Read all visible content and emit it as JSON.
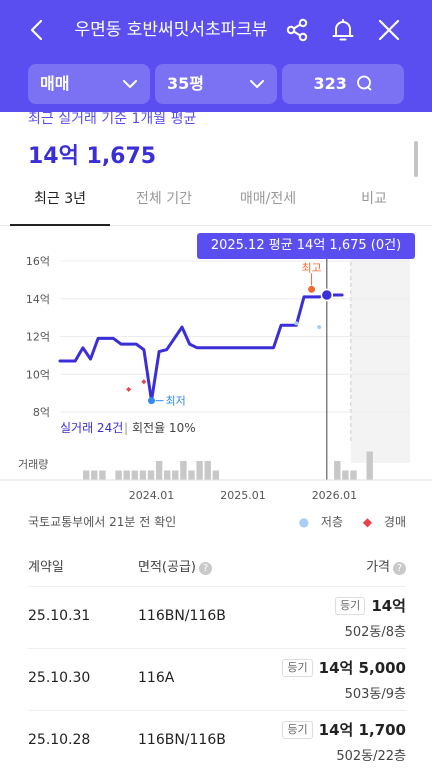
{
  "header": {
    "title": "우면동 호반써밋서초파크뷰",
    "bg_color": "#5b4ef0"
  },
  "filters": {
    "type_label": "매매",
    "size_label": "35평",
    "comment_count": "323"
  },
  "summary": {
    "caption": "최근 실거래 기준 1개월 평균",
    "price": "14억 1,675"
  },
  "tabs": [
    {
      "label": "최근 3년",
      "active": true
    },
    {
      "label": "전체 기간",
      "active": false
    },
    {
      "label": "매매/전세",
      "active": false
    },
    {
      "label": "비교",
      "active": false
    }
  ],
  "tooltip": "2025.12 평균 14억 1,675 (0건)",
  "chart_data": {
    "type": "line",
    "ylim": [
      8,
      16
    ],
    "y_ticks": [
      "16억",
      "14억",
      "12억",
      "10억",
      "8억"
    ],
    "x_ticks": [
      "2024.01",
      "2025.01",
      "2026.01"
    ],
    "series": [
      {
        "x": [
          "2023.01",
          "2023.03",
          "2023.04",
          "2023.05",
          "2023.06",
          "2023.08",
          "2023.09",
          "2023.11",
          "2023.12",
          "2024.01",
          "2024.02",
          "2024.03",
          "2024.05",
          "2024.06",
          "2024.07",
          "2024.09",
          "2025.01",
          "2025.05",
          "2025.06",
          "2025.08",
          "2025.09",
          "2025.10",
          "2025.11",
          "2025.12",
          "2026.02"
        ],
        "values": [
          10.7,
          10.7,
          11.4,
          10.8,
          11.9,
          11.9,
          11.6,
          11.6,
          11.3,
          8.6,
          11.2,
          11.3,
          12.5,
          11.6,
          11.4,
          11.4,
          11.4,
          11.4,
          12.6,
          12.6,
          14.1,
          14.1,
          14.1,
          14.2,
          14.2
        ]
      }
    ],
    "max_label": "최고",
    "min_label": "최저",
    "max_point": {
      "x": "2025.10",
      "y": 14.5
    },
    "min_point": {
      "x": "2024.01",
      "y": 8.6
    },
    "low_floor_points": [
      {
        "x": "2025.08",
        "y": 12.7
      },
      {
        "x": "2025.11",
        "y": 12.5
      }
    ],
    "auction_points": [
      {
        "x": "2023.10",
        "y": 9.2
      },
      {
        "x": "2023.12",
        "y": 9.6
      }
    ],
    "volume_label": "거래량",
    "volume_values": [
      1,
      1,
      1,
      0,
      1,
      1,
      1,
      1,
      1,
      2,
      1,
      1,
      2,
      1,
      2,
      2,
      1,
      0,
      0,
      0,
      0,
      0,
      0,
      0,
      0,
      0,
      0,
      0,
      0,
      0,
      0,
      2,
      1,
      1,
      0,
      3
    ],
    "summary_text_1": "실거래 24건",
    "summary_text_2": "회전율 10%",
    "line_color": "#3a2ed8",
    "max_color": "#f06a2f",
    "min_color": "#2f8bf0"
  },
  "meta": {
    "source": "국토교통부에서 21분 전 확인",
    "legend_low": "저층",
    "legend_auction": "경매"
  },
  "table": {
    "head_date": "계약일",
    "head_area": "면적(공급)",
    "head_price": "가격",
    "rows": [
      {
        "date": "25.10.31",
        "area": "116BN/116B",
        "badge": "등기",
        "price": "14억",
        "unit": "502동/8층"
      },
      {
        "date": "25.10.30",
        "area": "116A",
        "badge": "등기",
        "price": "14억 5,000",
        "unit": "503동/9층"
      },
      {
        "date": "25.10.28",
        "area": "116BN/116B",
        "badge": "등기",
        "price": "14억 1,700",
        "unit": "502동/22층"
      }
    ]
  }
}
